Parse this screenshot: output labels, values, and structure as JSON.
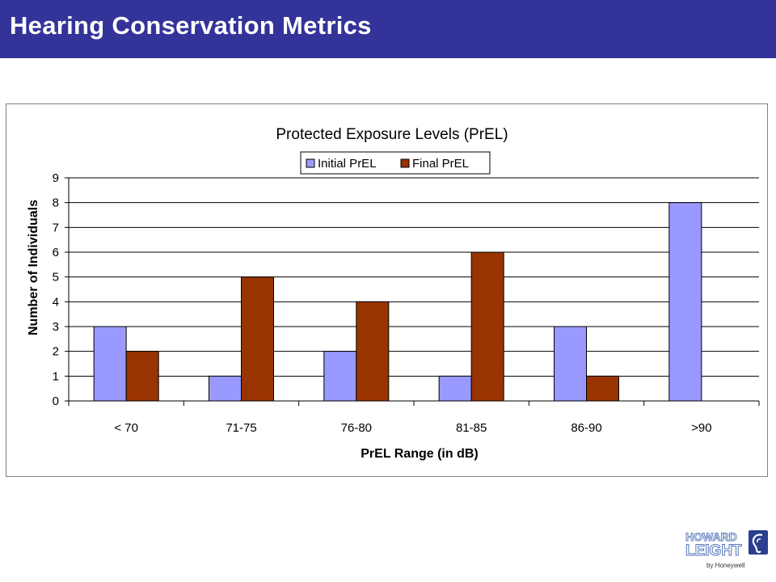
{
  "slide": {
    "title": "Hearing Conservation Metrics"
  },
  "logo": {
    "line1": "HOWARD",
    "line2": "LEIGHT",
    "tagline": "by Honeywell"
  },
  "chart_data": {
    "type": "bar",
    "title": "Protected Exposure Levels (PrEL)",
    "xlabel": "PrEL Range (in dB)",
    "ylabel": "Number of Individuals",
    "categories": [
      "< 70",
      "71-75",
      "76-80",
      "81-85",
      "86-90",
      ">90"
    ],
    "series": [
      {
        "name": "Initial PrEL",
        "values": [
          3,
          1,
          2,
          1,
          3,
          8
        ],
        "color": "#9999ff"
      },
      {
        "name": "Final PrEL",
        "values": [
          2,
          5,
          4,
          6,
          1,
          0
        ],
        "color": "#993300"
      }
    ],
    "ylim": [
      0,
      9
    ],
    "yticks": [
      "0",
      "1",
      "2",
      "3",
      "4",
      "5",
      "6",
      "7",
      "8",
      "9"
    ],
    "grid": true,
    "legend": "top"
  }
}
